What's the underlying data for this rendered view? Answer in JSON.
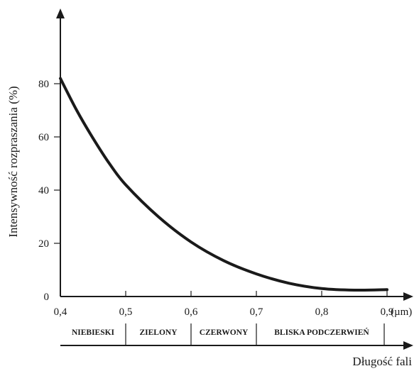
{
  "chart_data": {
    "type": "line",
    "xlabel": "Długość fali",
    "ylabel": "Intensywność rozpraszania (%)",
    "xlim": [
      0.4,
      0.9
    ],
    "ylim": [
      0,
      80
    ],
    "x_ticks": [
      "0,4",
      "0,5",
      "0,6",
      "0,7",
      "0,8",
      "0,9"
    ],
    "x_unit": "(µm)",
    "y_ticks": [
      "0",
      "20",
      "40",
      "60",
      "80"
    ],
    "series": [
      {
        "x": [
          0.4,
          0.425,
          0.45,
          0.475,
          0.5,
          0.55,
          0.6,
          0.65,
          0.7,
          0.75,
          0.8,
          0.85,
          0.9
        ],
        "y": [
          82,
          70,
          59.5,
          50,
          42,
          30,
          20.5,
          13.5,
          8.5,
          5,
          3,
          2.4,
          2.6
        ]
      }
    ],
    "bands": [
      {
        "label": "NIEBIESKI",
        "from": 0.4,
        "to": 0.5
      },
      {
        "label": "ZIELONY",
        "from": 0.5,
        "to": 0.6
      },
      {
        "label": "CZERWONY",
        "from": 0.6,
        "to": 0.7
      },
      {
        "label": "BLISKA PODCZERWIEŃ",
        "from": 0.7,
        "to": 0.9
      }
    ],
    "grid": false,
    "colors": {
      "line": "#1a1a1a",
      "axis": "#1a1a1a"
    }
  }
}
